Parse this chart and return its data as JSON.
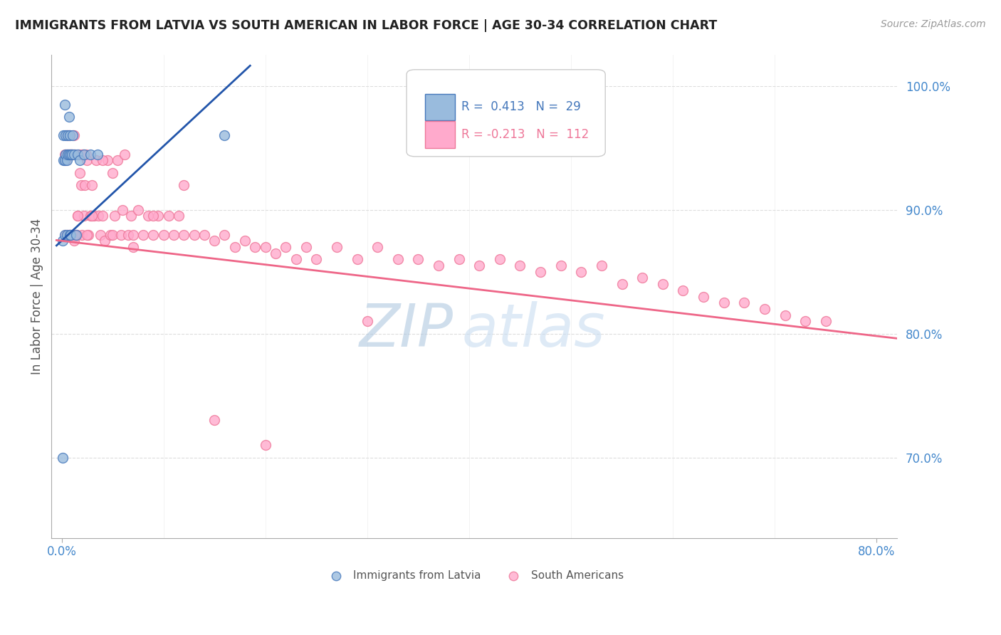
{
  "title": "IMMIGRANTS FROM LATVIA VS SOUTH AMERICAN IN LABOR FORCE | AGE 30-34 CORRELATION CHART",
  "source": "Source: ZipAtlas.com",
  "ylabel_left": "In Labor Force | Age 30-34",
  "x_tick_labels": [
    "0.0%",
    "",
    "",
    "",
    "",
    "",
    "",
    "",
    "80.0%"
  ],
  "x_tick_positions": [
    0.0,
    0.1,
    0.2,
    0.3,
    0.4,
    0.5,
    0.6,
    0.7,
    0.8
  ],
  "x_tick_labels_shown": [
    "0.0%",
    "80.0%"
  ],
  "x_tick_positions_shown": [
    0.0,
    0.8
  ],
  "y_tick_labels": [
    "100.0%",
    "90.0%",
    "80.0%",
    "70.0%"
  ],
  "y_tick_positions": [
    1.0,
    0.9,
    0.8,
    0.7
  ],
  "xlim": [
    -0.01,
    0.82
  ],
  "ylim": [
    0.635,
    1.025
  ],
  "blue_scatter_color": "#99BBDD",
  "blue_edge_color": "#4477BB",
  "pink_scatter_color": "#FFAACC",
  "pink_edge_color": "#EE7799",
  "blue_line_color": "#2255AA",
  "pink_line_color": "#EE6688",
  "axis_tick_color": "#4488CC",
  "grid_color": "#DDDDDD",
  "background_color": "#FFFFFF",
  "title_color": "#222222",
  "source_color": "#999999",
  "ylabel_color": "#555555",
  "legend_r_latvia": "R =  0.413",
  "legend_n_latvia": "N =  29",
  "legend_r_south": "R = -0.213",
  "legend_n_south": "N =  112",
  "watermark_zip_color": "#B0C8E0",
  "watermark_atlas_color": "#C8DCF0",
  "latvia_x": [
    0.001,
    0.001,
    0.002,
    0.002,
    0.003,
    0.003,
    0.003,
    0.004,
    0.004,
    0.005,
    0.005,
    0.006,
    0.006,
    0.007,
    0.007,
    0.008,
    0.008,
    0.009,
    0.009,
    0.01,
    0.011,
    0.012,
    0.014,
    0.016,
    0.018,
    0.022,
    0.028,
    0.035,
    0.16
  ],
  "latvia_y": [
    0.7,
    0.875,
    0.94,
    0.96,
    0.88,
    0.94,
    0.985,
    0.96,
    0.945,
    0.88,
    0.94,
    0.96,
    0.945,
    0.975,
    0.945,
    0.88,
    0.96,
    0.88,
    0.945,
    0.945,
    0.96,
    0.945,
    0.88,
    0.945,
    0.94,
    0.945,
    0.945,
    0.945,
    0.96
  ],
  "south_x": [
    0.003,
    0.004,
    0.005,
    0.005,
    0.006,
    0.006,
    0.007,
    0.008,
    0.008,
    0.009,
    0.01,
    0.01,
    0.011,
    0.012,
    0.012,
    0.013,
    0.014,
    0.015,
    0.016,
    0.017,
    0.018,
    0.019,
    0.02,
    0.021,
    0.022,
    0.023,
    0.024,
    0.025,
    0.026,
    0.028,
    0.03,
    0.032,
    0.034,
    0.036,
    0.038,
    0.04,
    0.042,
    0.045,
    0.048,
    0.05,
    0.052,
    0.055,
    0.058,
    0.06,
    0.062,
    0.065,
    0.068,
    0.07,
    0.075,
    0.08,
    0.085,
    0.09,
    0.095,
    0.1,
    0.105,
    0.11,
    0.115,
    0.12,
    0.13,
    0.14,
    0.15,
    0.16,
    0.17,
    0.18,
    0.19,
    0.2,
    0.21,
    0.22,
    0.23,
    0.24,
    0.25,
    0.27,
    0.29,
    0.31,
    0.33,
    0.35,
    0.37,
    0.39,
    0.41,
    0.43,
    0.45,
    0.47,
    0.49,
    0.51,
    0.53,
    0.55,
    0.57,
    0.59,
    0.61,
    0.63,
    0.65,
    0.67,
    0.69,
    0.71,
    0.73,
    0.75,
    0.004,
    0.007,
    0.01,
    0.013,
    0.016,
    0.02,
    0.025,
    0.03,
    0.04,
    0.05,
    0.07,
    0.09,
    0.12,
    0.15,
    0.2,
    0.3
  ],
  "south_y": [
    0.945,
    0.88,
    0.945,
    0.96,
    0.945,
    0.88,
    0.88,
    0.945,
    0.88,
    0.945,
    0.88,
    0.945,
    0.88,
    0.96,
    0.875,
    0.945,
    0.88,
    0.88,
    0.895,
    0.945,
    0.93,
    0.92,
    0.88,
    0.945,
    0.895,
    0.92,
    0.945,
    0.94,
    0.88,
    0.895,
    0.92,
    0.895,
    0.94,
    0.895,
    0.88,
    0.895,
    0.875,
    0.94,
    0.88,
    0.88,
    0.895,
    0.94,
    0.88,
    0.9,
    0.945,
    0.88,
    0.895,
    0.88,
    0.9,
    0.88,
    0.895,
    0.88,
    0.895,
    0.88,
    0.895,
    0.88,
    0.895,
    0.88,
    0.88,
    0.88,
    0.875,
    0.88,
    0.87,
    0.875,
    0.87,
    0.87,
    0.865,
    0.87,
    0.86,
    0.87,
    0.86,
    0.87,
    0.86,
    0.87,
    0.86,
    0.86,
    0.855,
    0.86,
    0.855,
    0.86,
    0.855,
    0.85,
    0.855,
    0.85,
    0.855,
    0.84,
    0.845,
    0.84,
    0.835,
    0.83,
    0.825,
    0.825,
    0.82,
    0.815,
    0.81,
    0.81,
    0.94,
    0.96,
    0.945,
    0.88,
    0.895,
    0.945,
    0.88,
    0.895,
    0.94,
    0.93,
    0.87,
    0.895,
    0.92,
    0.73,
    0.71,
    0.81
  ]
}
